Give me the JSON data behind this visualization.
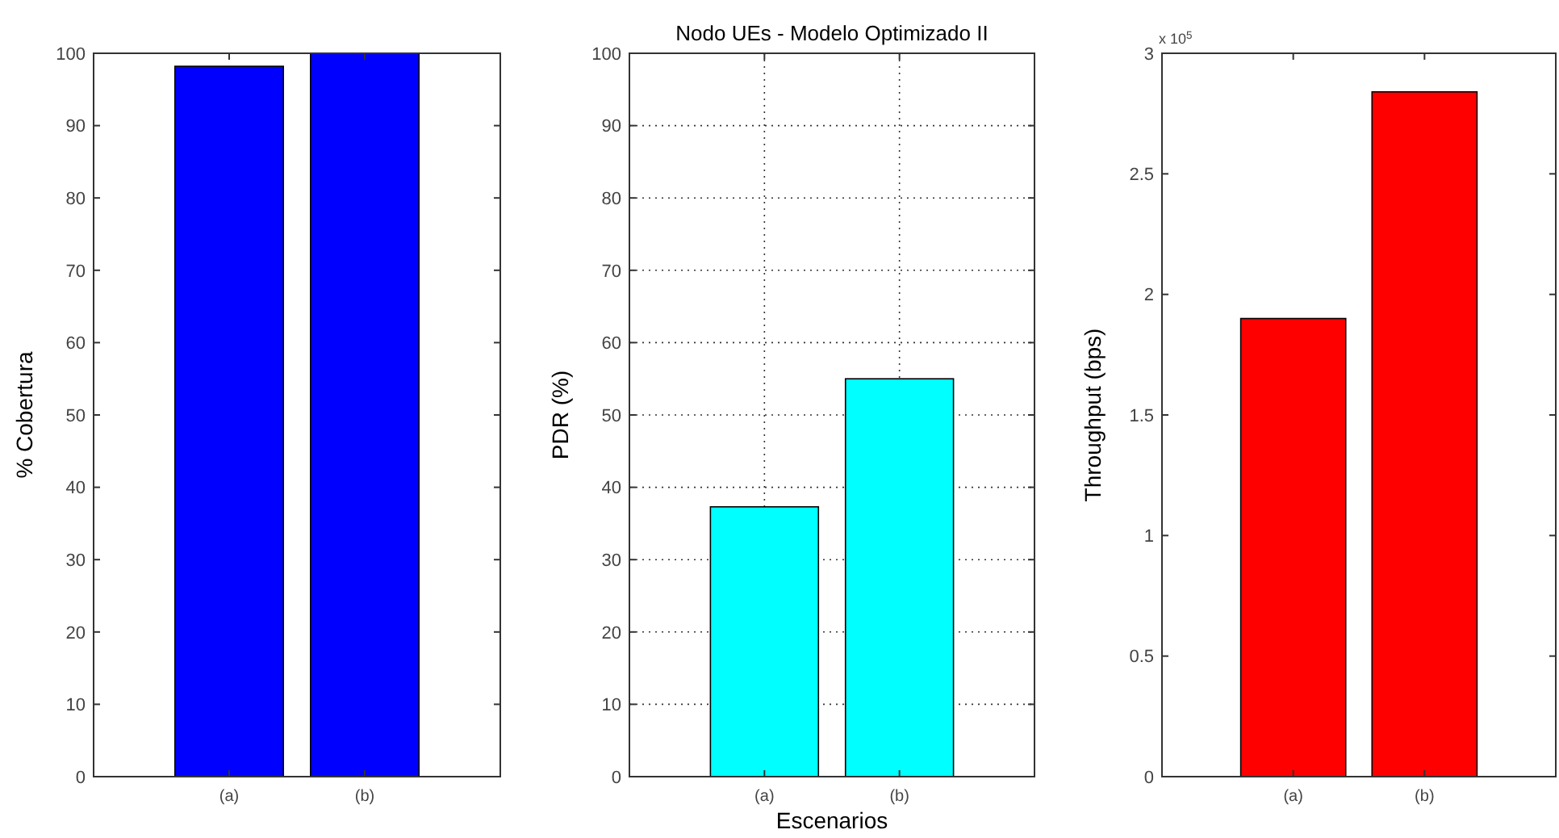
{
  "chart_data": [
    {
      "type": "bar",
      "ylabel": "% Cobertura",
      "categories": [
        "(a)",
        "(b)"
      ],
      "values": [
        98.2,
        100
      ],
      "color": "#0000ff",
      "ylim": [
        0,
        100
      ],
      "yticks": [
        0,
        10,
        20,
        30,
        40,
        50,
        60,
        70,
        80,
        90,
        100
      ],
      "grid": false
    },
    {
      "type": "bar",
      "title": "Nodo UEs - Modelo Optimizado II",
      "xlabel": "Escenarios",
      "ylabel": "PDR (%)",
      "categories": [
        "(a)",
        "(b)"
      ],
      "values": [
        37.3,
        55
      ],
      "color": "#00ffff",
      "ylim": [
        0,
        100
      ],
      "yticks": [
        0,
        10,
        20,
        30,
        40,
        50,
        60,
        70,
        80,
        90,
        100
      ],
      "grid": true
    },
    {
      "type": "bar",
      "ylabel": "Throughput (bps)",
      "categories": [
        "(a)",
        "(b)"
      ],
      "values": [
        1.9,
        2.84
      ],
      "color": "#ff0000",
      "ylim": [
        0,
        3
      ],
      "yticks": [
        0,
        0.5,
        1,
        1.5,
        2,
        2.5,
        3
      ],
      "grid": false,
      "annotations": [
        "x 10$^{5}$"
      ]
    }
  ]
}
